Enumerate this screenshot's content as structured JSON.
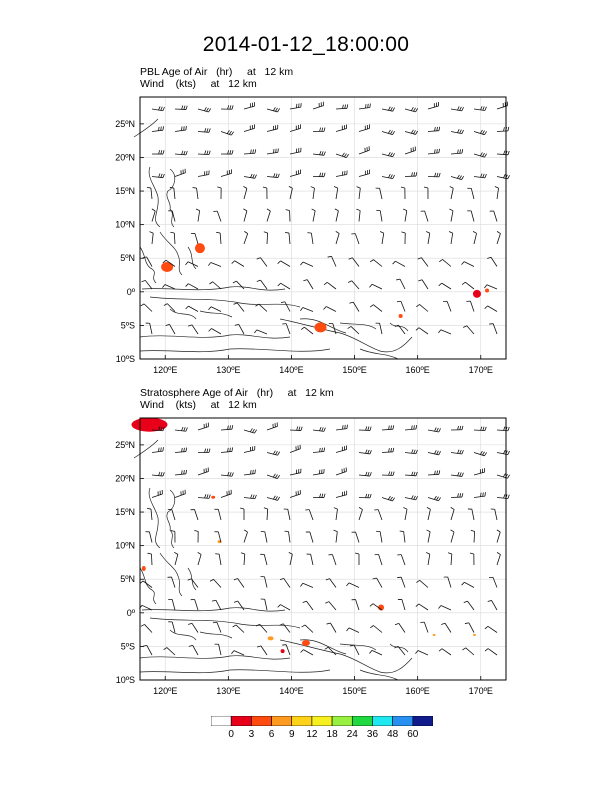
{
  "title": "2014-01-12_18:00:00",
  "panels": [
    {
      "id": "pbl",
      "title_line1": "PBL Age of Air   (hr)     at   12 km",
      "title_line2": "Wind    (kts)     at   12 km"
    },
    {
      "id": "strat",
      "title_line1": "Stratosphere Age of Air   (hr)     at   12 km",
      "title_line2": "Wind    (kts)     at   12 km"
    }
  ],
  "map": {
    "lon_range": [
      116,
      174
    ],
    "lat_range": [
      -10,
      29
    ],
    "lon_ticks": [
      "120ºE",
      "130ºE",
      "140ºE",
      "150ºE",
      "160ºE",
      "170ºE"
    ],
    "lat_ticks": [
      "25ºN",
      "20ºN",
      "15ºN",
      "10ºN",
      "5ºN",
      "0º",
      "5ºS",
      "10ºS"
    ]
  },
  "colorbar": {
    "labels": [
      "0",
      "3",
      "6",
      "9",
      "12",
      "18",
      "24",
      "36",
      "48",
      "60"
    ],
    "colors": [
      "#ffffff",
      "#e8001a",
      "#ff4a10",
      "#ff9a20",
      "#ffd21a",
      "#f6f020",
      "#98f040",
      "#20d840",
      "#20e8f0",
      "#2890f0",
      "#101c8c"
    ]
  }
}
